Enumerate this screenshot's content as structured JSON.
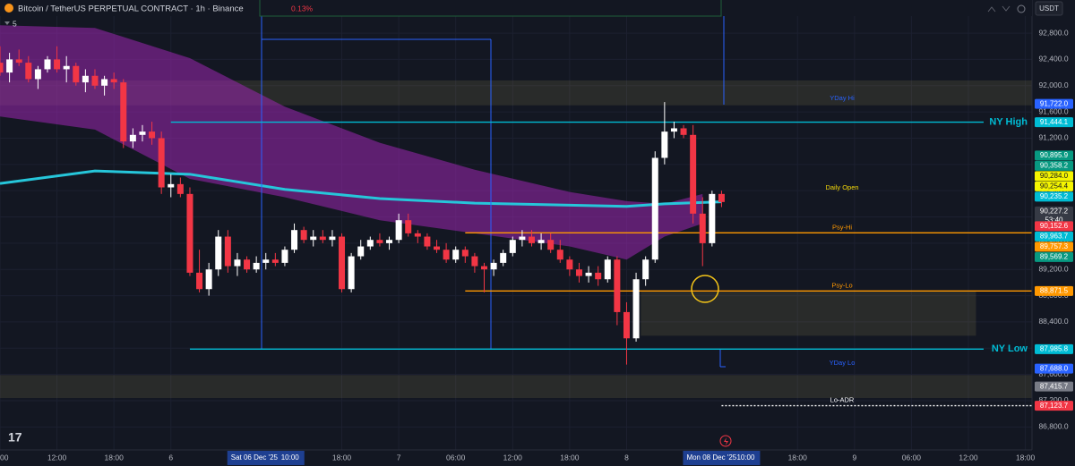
{
  "chart_data": {
    "type": "candlestick",
    "symbol_title": "Bitcoin / TetherUS PERPETUAL CONTRACT · 1h · Binance",
    "change": "0.13%",
    "indicator_count": "5",
    "currency": "USDT",
    "up_color": "#ffffff",
    "down_color": "#f23645",
    "grid": true,
    "xlim": [
      0,
      108.7
    ],
    "ylim": [
      86450,
      93060
    ],
    "xticks": [
      {
        "value": 0,
        "label": "00"
      },
      {
        "value": 6,
        "label": "12:00"
      },
      {
        "value": 12,
        "label": "18:00"
      },
      {
        "value": 18,
        "label": "6"
      },
      {
        "value": 36,
        "label": "18:00"
      },
      {
        "value": 42,
        "label": "7"
      },
      {
        "value": 48,
        "label": "06:00"
      },
      {
        "value": 54,
        "label": "12:00"
      },
      {
        "value": 60,
        "label": "18:00"
      },
      {
        "value": 66,
        "label": "8"
      },
      {
        "value": 84,
        "label": "18:00"
      },
      {
        "value": 90,
        "label": "9"
      },
      {
        "value": 96,
        "label": "06:00"
      },
      {
        "value": 102,
        "label": "12:00"
      },
      {
        "value": 108,
        "label": "18:00"
      }
    ],
    "yticks": [
      {
        "value": 92800,
        "label": "92,800.0"
      },
      {
        "value": 92400,
        "label": "92,400.0"
      },
      {
        "value": 92000,
        "label": "92,000.0"
      },
      {
        "value": 91600,
        "label": "91,600.0"
      },
      {
        "value": 91200,
        "label": "91,200.0"
      },
      {
        "value": 90800,
        "label": "90,800.0"
      },
      {
        "value": 90400,
        "label": "90,400.0"
      },
      {
        "value": 90000,
        "label": "90,000.0"
      },
      {
        "value": 89600,
        "label": "89,600.0"
      },
      {
        "value": 89200,
        "label": "89,200.0"
      },
      {
        "value": 88800,
        "label": "88,800.0"
      },
      {
        "value": 88400,
        "label": "88,400.0"
      },
      {
        "value": 88000,
        "label": "88,000.0"
      },
      {
        "value": 87600,
        "label": "87,600.0"
      },
      {
        "value": 87200,
        "label": "87,200.0"
      },
      {
        "value": 86800,
        "label": "86,800.0"
      }
    ],
    "candles": {
      "x": [
        0,
        1,
        2,
        3,
        4,
        5,
        6,
        7,
        8,
        9,
        10,
        11,
        12,
        13,
        14,
        15,
        16,
        17,
        18,
        19,
        20,
        21,
        22,
        23,
        24,
        25,
        26,
        27,
        28,
        29,
        30,
        31,
        32,
        33,
        34,
        35,
        36,
        37,
        38,
        39,
        40,
        41,
        42,
        43,
        44,
        45,
        46,
        47,
        48,
        49,
        50,
        51,
        52,
        53,
        54,
        55,
        56,
        57,
        58,
        59,
        60,
        61,
        62,
        63,
        64,
        65,
        66,
        67,
        68,
        69,
        70,
        71,
        72,
        73,
        74,
        75,
        76
      ],
      "open": [
        92350,
        92200,
        92400,
        92350,
        92100,
        92250,
        92400,
        92250,
        92300,
        92050,
        92150,
        92000,
        92100,
        92050,
        91150,
        91250,
        91300,
        91200,
        90450,
        90500,
        90350,
        89150,
        88900,
        89200,
        89700,
        89250,
        89350,
        89200,
        89300,
        89350,
        89300,
        89500,
        89800,
        89650,
        89700,
        89650,
        89700,
        88900,
        89400,
        89550,
        89650,
        89600,
        89650,
        89950,
        89750,
        89700,
        89550,
        89500,
        89350,
        89500,
        89400,
        89250,
        89200,
        89300,
        89450,
        89650,
        89700,
        89600,
        89650,
        89500,
        89350,
        89200,
        89100,
        89150,
        89050,
        89350,
        88550,
        88150,
        89050,
        89350,
        90900,
        91300,
        91350,
        91250,
        90050,
        89600,
        90350
      ],
      "high": [
        92600,
        92500,
        92550,
        92450,
        92300,
        92450,
        92600,
        92450,
        92350,
        92250,
        92250,
        92150,
        92200,
        92100,
        91350,
        91400,
        91450,
        91300,
        90650,
        90600,
        90450,
        89500,
        89300,
        89800,
        89800,
        89450,
        89400,
        89400,
        89450,
        89450,
        89550,
        89900,
        89850,
        89800,
        89800,
        89800,
        89750,
        89450,
        89650,
        89700,
        89750,
        89700,
        90050,
        90050,
        89800,
        89750,
        89650,
        89600,
        89550,
        89550,
        89450,
        89300,
        89350,
        89500,
        89700,
        89800,
        89800,
        89750,
        89750,
        89650,
        89400,
        89300,
        89250,
        89250,
        89400,
        89400,
        88700,
        89150,
        89400,
        91000,
        91750,
        91450,
        91400,
        91400,
        90300,
        90400,
        90400
      ],
      "low": [
        92150,
        92050,
        92300,
        92050,
        91950,
        92200,
        92200,
        92050,
        92000,
        91900,
        91950,
        91850,
        91950,
        91050,
        91050,
        91150,
        91100,
        90350,
        90300,
        90300,
        89100,
        88850,
        88800,
        89100,
        89150,
        89100,
        89150,
        89150,
        89200,
        89250,
        89250,
        89450,
        89600,
        89550,
        89600,
        89550,
        88850,
        88850,
        89350,
        89500,
        89550,
        89500,
        89600,
        89700,
        89600,
        89500,
        89450,
        89300,
        89300,
        89300,
        89150,
        88850,
        89100,
        89250,
        89400,
        89550,
        89550,
        89500,
        89450,
        89300,
        89100,
        89000,
        89000,
        88950,
        89000,
        88350,
        87750,
        88100,
        88950,
        89300,
        90800,
        91200,
        91200,
        89900,
        89250,
        89550,
        90150
      ],
      "close": [
        92200,
        92400,
        92350,
        92100,
        92250,
        92400,
        92250,
        92300,
        92050,
        92150,
        92000,
        92100,
        92050,
        91150,
        91250,
        91300,
        91200,
        90450,
        90500,
        90350,
        89150,
        88900,
        89200,
        89700,
        89250,
        89350,
        89200,
        89300,
        89350,
        89300,
        89500,
        89800,
        89650,
        89700,
        89650,
        89700,
        88900,
        89400,
        89550,
        89650,
        89600,
        89650,
        89950,
        89750,
        89700,
        89550,
        89500,
        89350,
        89500,
        89400,
        89250,
        89200,
        89300,
        89450,
        89650,
        89700,
        89600,
        89650,
        89500,
        89350,
        89200,
        89100,
        89150,
        89050,
        89350,
        88550,
        88150,
        89050,
        89350,
        90900,
        91300,
        91350,
        91250,
        90050,
        89600,
        90350,
        90227.2
      ]
    },
    "moving_average": {
      "color": "#26c6da",
      "x": [
        0,
        10,
        20,
        30,
        40,
        50,
        60,
        66,
        70,
        76
      ],
      "values": [
        90510,
        90700,
        90650,
        90420,
        90280,
        90210,
        90180,
        90160,
        90200,
        90230
      ]
    },
    "cloud": {
      "color": "#9c27b0",
      "x": [
        0,
        10,
        20,
        30,
        40,
        50,
        60,
        66,
        70,
        74
      ],
      "upper": [
        92920,
        92880,
        92420,
        91680,
        91130,
        90720,
        90380,
        90240,
        90200,
        90350
      ],
      "lower": [
        91530,
        91330,
        90580,
        90300,
        89950,
        89750,
        89550,
        89350,
        89700,
        89900
      ]
    },
    "zones": [
      {
        "ylim": [
          91700,
          92080
        ],
        "xlim": [
          0,
          108.7
        ]
      },
      {
        "ylim": [
          87240,
          87590
        ],
        "xlim": [
          0,
          108.7
        ]
      },
      {
        "ylim": [
          88190,
          88870
        ],
        "xlim": [
          67.5,
          102.8
        ]
      }
    ],
    "levels": [
      {
        "label": "YDay Hi",
        "value": 91722.0,
        "color": "#2962ff",
        "from": 76,
        "style": "none",
        "label_position": "above"
      },
      {
        "label": "NY High",
        "value": 91444.1,
        "color": "#00bcd4",
        "from": 18,
        "style": "solid",
        "label_position": "right"
      },
      {
        "label": "Daily Open",
        "value": 90358.2,
        "color": "#f5d90a",
        "from": 76,
        "style": "none",
        "label_position": "above"
      },
      {
        "label": "Psy-Hi",
        "value": 89757.3,
        "color": "#ff9800",
        "from": 49,
        "style": "solid",
        "label_position": "above"
      },
      {
        "label": "Psy-Lo",
        "value": 88871.5,
        "color": "#ff9800",
        "from": 49,
        "style": "solid",
        "label_position": "above"
      },
      {
        "label": "NY Low",
        "value": 87985.8,
        "color": "#00bcd4",
        "from": 20,
        "style": "solid",
        "label_position": "right"
      },
      {
        "label": "YDay Lo",
        "value": 87688.0,
        "color": "#2962ff",
        "from": 76,
        "style": "none",
        "label_position": "above"
      },
      {
        "label": "Lo-ADR",
        "value": 87123.7,
        "color": "#ffffff",
        "from": 76,
        "style": "dotted",
        "label_position": "above"
      }
    ],
    "price_labels": [
      {
        "value": 91722.0,
        "label": "91,722.0",
        "color": "#2962ff"
      },
      {
        "value": 91444.1,
        "label": "91,444.1",
        "color": "#00bcd4"
      },
      {
        "value": 90895.9,
        "label": "90,895.9",
        "color": "#089981"
      },
      {
        "value": 90358.2,
        "label": "90,358.2",
        "color": "#089981"
      },
      {
        "value": 90284.0,
        "label": "90,284.0",
        "color": "#f5f500"
      },
      {
        "value": 90254.4,
        "label": "90,254.4",
        "color": "#f5f500"
      },
      {
        "value": 90235.2,
        "label": "90,235.2",
        "color": "#00bcd4"
      },
      {
        "value": 90227.2,
        "label": "90,227.2",
        "color": "#363a45",
        "countdown": "53:40"
      },
      {
        "value": 90152.6,
        "label": "90,152.6",
        "color": "#f23645"
      },
      {
        "value": 89963.7,
        "label": "89,963.7",
        "color": "#00bcd4"
      },
      {
        "value": 89757.3,
        "label": "89,757.3",
        "color": "#ff9800"
      },
      {
        "value": 89569.2,
        "label": "89,569.2",
        "color": "#089981"
      },
      {
        "value": 88871.5,
        "label": "88,871.5",
        "color": "#ff9800"
      },
      {
        "value": 87985.8,
        "label": "87,985.8",
        "color": "#00bcd4"
      },
      {
        "value": 87688.0,
        "label": "87,688.0",
        "color": "#2962ff"
      },
      {
        "value": 87415.7,
        "label": "87,415.7",
        "color": "#787b86"
      },
      {
        "value": 87123.7,
        "label": "87,123.7",
        "color": "#f23645"
      }
    ],
    "time_markers": [
      {
        "x": 28,
        "date": "Sat 06 Dec '25",
        "time": "10:00"
      },
      {
        "x": 76,
        "date": "Mon 08 Dec '25",
        "time": "10:00"
      }
    ]
  }
}
